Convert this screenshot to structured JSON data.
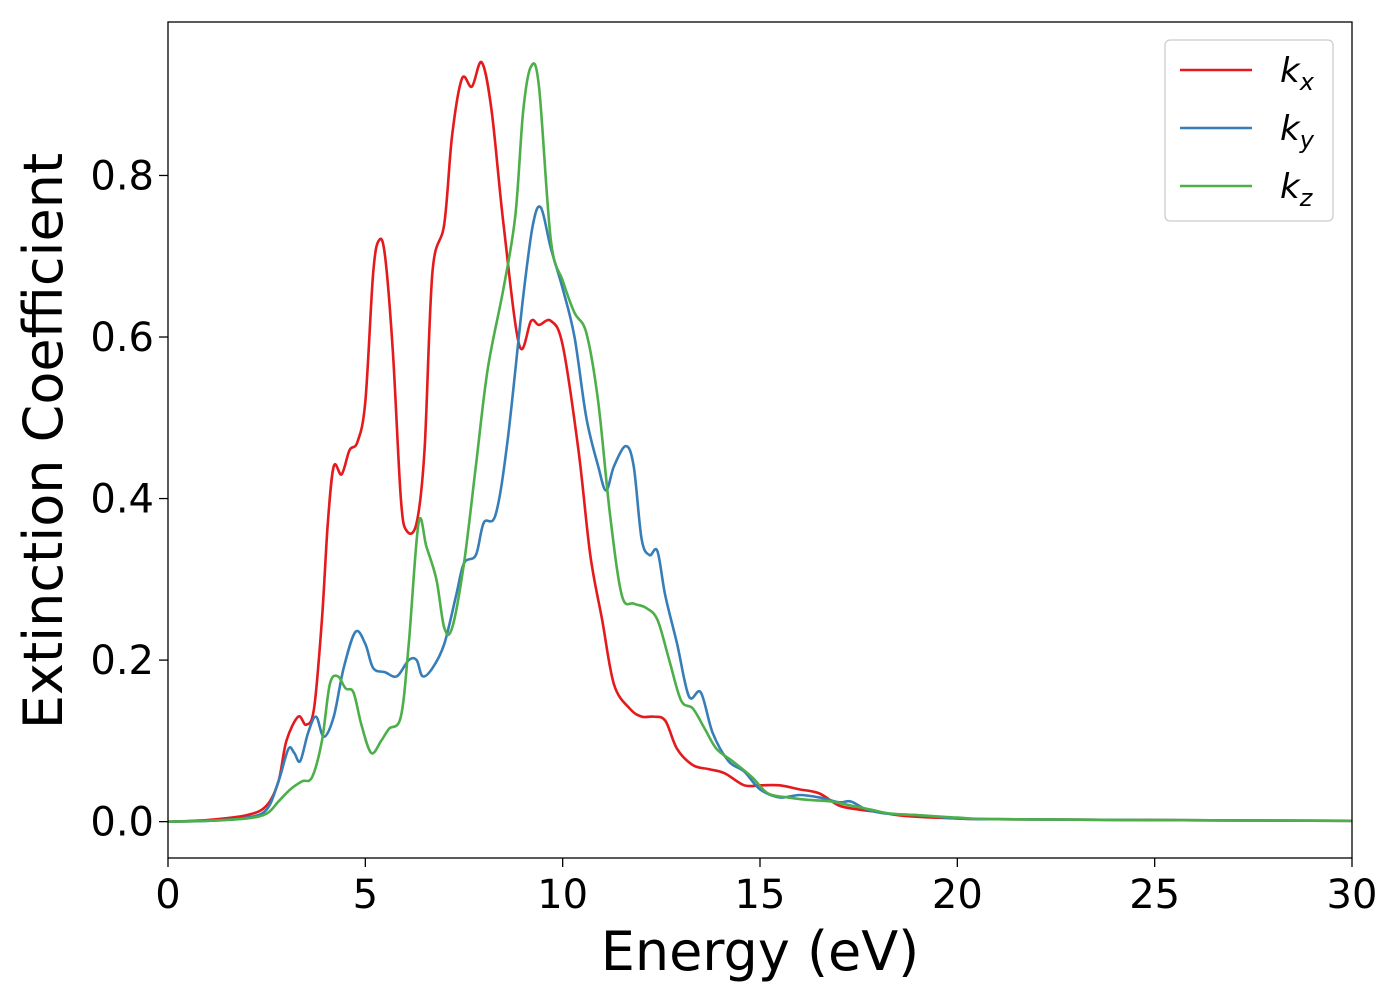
{
  "chart_data": {
    "type": "line",
    "title": "",
    "xlabel": "Energy (eV)",
    "ylabel": "Extinction Coefficient",
    "xlim": [
      0,
      30
    ],
    "ylim": [
      -0.045,
      0.99
    ],
    "grid": false,
    "legend_position": "top-right",
    "x_ticks": [
      0,
      5,
      10,
      15,
      20,
      25,
      30
    ],
    "x_tick_labels": [
      "0",
      "5",
      "10",
      "15",
      "20",
      "25",
      "30"
    ],
    "y_ticks": [
      0.0,
      0.2,
      0.4,
      0.6,
      0.8
    ],
    "y_tick_labels": [
      "0.0",
      "0.2",
      "0.4",
      "0.6",
      "0.8"
    ],
    "series": [
      {
        "name": "k_x",
        "label_main": "k",
        "label_sub": "x",
        "color": "#e41a1c",
        "points": [
          [
            0,
            0
          ],
          [
            1,
            0.002
          ],
          [
            2,
            0.008
          ],
          [
            2.5,
            0.02
          ],
          [
            2.8,
            0.05
          ],
          [
            3.0,
            0.1
          ],
          [
            3.3,
            0.13
          ],
          [
            3.5,
            0.12
          ],
          [
            3.7,
            0.14
          ],
          [
            3.9,
            0.25
          ],
          [
            4.05,
            0.37
          ],
          [
            4.2,
            0.44
          ],
          [
            4.4,
            0.43
          ],
          [
            4.6,
            0.46
          ],
          [
            4.8,
            0.47
          ],
          [
            5.0,
            0.52
          ],
          [
            5.2,
            0.68
          ],
          [
            5.35,
            0.72
          ],
          [
            5.5,
            0.7
          ],
          [
            5.7,
            0.58
          ],
          [
            5.9,
            0.4
          ],
          [
            6.05,
            0.36
          ],
          [
            6.3,
            0.37
          ],
          [
            6.5,
            0.46
          ],
          [
            6.7,
            0.68
          ],
          [
            7.0,
            0.74
          ],
          [
            7.2,
            0.85
          ],
          [
            7.45,
            0.92
          ],
          [
            7.7,
            0.91
          ],
          [
            7.95,
            0.94
          ],
          [
            8.2,
            0.88
          ],
          [
            8.5,
            0.74
          ],
          [
            8.9,
            0.59
          ],
          [
            9.2,
            0.62
          ],
          [
            9.4,
            0.615
          ],
          [
            9.7,
            0.62
          ],
          [
            10.0,
            0.59
          ],
          [
            10.4,
            0.46
          ],
          [
            10.7,
            0.33
          ],
          [
            11.0,
            0.25
          ],
          [
            11.3,
            0.17
          ],
          [
            11.7,
            0.14
          ],
          [
            12.0,
            0.13
          ],
          [
            12.3,
            0.13
          ],
          [
            12.6,
            0.125
          ],
          [
            12.9,
            0.09
          ],
          [
            13.3,
            0.07
          ],
          [
            13.7,
            0.065
          ],
          [
            14.1,
            0.06
          ],
          [
            14.6,
            0.045
          ],
          [
            15.0,
            0.045
          ],
          [
            15.5,
            0.045
          ],
          [
            16.0,
            0.04
          ],
          [
            16.5,
            0.035
          ],
          [
            17.0,
            0.02
          ],
          [
            17.5,
            0.015
          ],
          [
            18.0,
            0.012
          ],
          [
            18.5,
            0.008
          ],
          [
            19.0,
            0.006
          ],
          [
            20,
            0.004
          ],
          [
            21,
            0.003
          ],
          [
            25,
            0.002
          ],
          [
            30,
            0.001
          ]
        ]
      },
      {
        "name": "k_y",
        "label_main": "k",
        "label_sub": "y",
        "color": "#377eb8",
        "points": [
          [
            0,
            0
          ],
          [
            1,
            0.001
          ],
          [
            2,
            0.005
          ],
          [
            2.5,
            0.015
          ],
          [
            2.8,
            0.05
          ],
          [
            3.05,
            0.09
          ],
          [
            3.2,
            0.085
          ],
          [
            3.35,
            0.075
          ],
          [
            3.55,
            0.11
          ],
          [
            3.75,
            0.13
          ],
          [
            3.95,
            0.105
          ],
          [
            4.2,
            0.13
          ],
          [
            4.45,
            0.19
          ],
          [
            4.75,
            0.235
          ],
          [
            5.0,
            0.22
          ],
          [
            5.2,
            0.19
          ],
          [
            5.5,
            0.185
          ],
          [
            5.8,
            0.18
          ],
          [
            6.1,
            0.2
          ],
          [
            6.3,
            0.2
          ],
          [
            6.45,
            0.18
          ],
          [
            6.7,
            0.19
          ],
          [
            7.0,
            0.22
          ],
          [
            7.3,
            0.28
          ],
          [
            7.5,
            0.32
          ],
          [
            7.8,
            0.33
          ],
          [
            8.0,
            0.37
          ],
          [
            8.3,
            0.38
          ],
          [
            8.6,
            0.47
          ],
          [
            9.0,
            0.65
          ],
          [
            9.25,
            0.74
          ],
          [
            9.45,
            0.76
          ],
          [
            9.7,
            0.71
          ],
          [
            10.0,
            0.66
          ],
          [
            10.3,
            0.6
          ],
          [
            10.6,
            0.5
          ],
          [
            10.9,
            0.44
          ],
          [
            11.1,
            0.41
          ],
          [
            11.3,
            0.44
          ],
          [
            11.6,
            0.465
          ],
          [
            11.8,
            0.44
          ],
          [
            12.0,
            0.35
          ],
          [
            12.2,
            0.33
          ],
          [
            12.4,
            0.335
          ],
          [
            12.6,
            0.28
          ],
          [
            12.9,
            0.22
          ],
          [
            13.2,
            0.155
          ],
          [
            13.5,
            0.16
          ],
          [
            13.8,
            0.11
          ],
          [
            14.2,
            0.075
          ],
          [
            14.6,
            0.062
          ],
          [
            15.0,
            0.04
          ],
          [
            15.5,
            0.03
          ],
          [
            16.0,
            0.033
          ],
          [
            16.5,
            0.03
          ],
          [
            17.0,
            0.024
          ],
          [
            17.3,
            0.025
          ],
          [
            17.7,
            0.015
          ],
          [
            18.2,
            0.01
          ],
          [
            19.0,
            0.008
          ],
          [
            20,
            0.004
          ],
          [
            21,
            0.003
          ],
          [
            25,
            0.002
          ],
          [
            30,
            0.001
          ]
        ]
      },
      {
        "name": "k_z",
        "label_main": "k",
        "label_sub": "z",
        "color": "#4daf4a",
        "points": [
          [
            0,
            0
          ],
          [
            1,
            0.001
          ],
          [
            2,
            0.004
          ],
          [
            2.5,
            0.01
          ],
          [
            2.8,
            0.025
          ],
          [
            3.1,
            0.04
          ],
          [
            3.4,
            0.05
          ],
          [
            3.65,
            0.055
          ],
          [
            3.9,
            0.1
          ],
          [
            4.1,
            0.17
          ],
          [
            4.3,
            0.18
          ],
          [
            4.5,
            0.165
          ],
          [
            4.7,
            0.16
          ],
          [
            4.9,
            0.12
          ],
          [
            5.15,
            0.085
          ],
          [
            5.4,
            0.1
          ],
          [
            5.6,
            0.115
          ],
          [
            5.9,
            0.13
          ],
          [
            6.1,
            0.22
          ],
          [
            6.35,
            0.37
          ],
          [
            6.55,
            0.34
          ],
          [
            6.8,
            0.3
          ],
          [
            7.0,
            0.24
          ],
          [
            7.2,
            0.24
          ],
          [
            7.5,
            0.32
          ],
          [
            7.8,
            0.44
          ],
          [
            8.1,
            0.56
          ],
          [
            8.5,
            0.66
          ],
          [
            8.8,
            0.75
          ],
          [
            9.0,
            0.88
          ],
          [
            9.2,
            0.935
          ],
          [
            9.4,
            0.91
          ],
          [
            9.7,
            0.72
          ],
          [
            10.0,
            0.67
          ],
          [
            10.3,
            0.63
          ],
          [
            10.6,
            0.605
          ],
          [
            10.9,
            0.52
          ],
          [
            11.2,
            0.38
          ],
          [
            11.5,
            0.28
          ],
          [
            11.8,
            0.27
          ],
          [
            12.1,
            0.265
          ],
          [
            12.4,
            0.25
          ],
          [
            12.7,
            0.2
          ],
          [
            13.0,
            0.15
          ],
          [
            13.3,
            0.14
          ],
          [
            13.6,
            0.115
          ],
          [
            13.9,
            0.09
          ],
          [
            14.3,
            0.075
          ],
          [
            14.8,
            0.055
          ],
          [
            15.2,
            0.035
          ],
          [
            15.7,
            0.03
          ],
          [
            16.2,
            0.027
          ],
          [
            16.8,
            0.025
          ],
          [
            17.3,
            0.02
          ],
          [
            17.8,
            0.015
          ],
          [
            18.3,
            0.01
          ],
          [
            19.0,
            0.008
          ],
          [
            20,
            0.005
          ],
          [
            21,
            0.003
          ],
          [
            25,
            0.002
          ],
          [
            30,
            0.001
          ]
        ]
      }
    ]
  }
}
